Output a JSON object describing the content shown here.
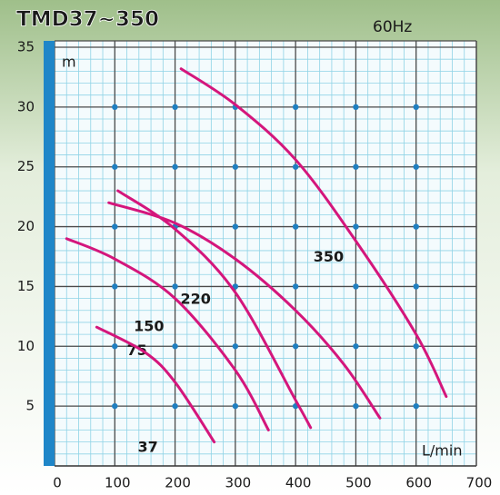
{
  "chart_data": {
    "type": "line",
    "title": "TMD37~350",
    "subtitle": "60Hz",
    "y_axis_label": "m",
    "x_axis_label": "L/min",
    "xlim": [
      0,
      700
    ],
    "ylim": [
      0,
      35
    ],
    "xticks": [
      0,
      100,
      200,
      300,
      400,
      500,
      600,
      700
    ],
    "yticks": [
      5,
      10,
      15,
      20,
      25,
      30,
      35
    ],
    "grid": true,
    "series": [
      {
        "name": "350",
        "color": "#d4167c",
        "x": [
          210,
          300,
          400,
          500,
          600,
          650
        ],
        "values": [
          33.2,
          30.2,
          25.6,
          18.8,
          11,
          5.8
        ]
      },
      {
        "name": "220",
        "color": "#d4167c",
        "x": [
          90,
          200,
          300,
          400,
          480,
          540
        ],
        "values": [
          22,
          20.3,
          17.3,
          13,
          8.5,
          4
        ]
      },
      {
        "name": "150",
        "color": "#d4167c",
        "x": [
          105,
          200,
          300,
          400,
          425
        ],
        "values": [
          23,
          19.8,
          14.5,
          5.5,
          3.2
        ]
      },
      {
        "name": "75",
        "color": "#d4167c",
        "x": [
          20,
          100,
          200,
          300,
          355
        ],
        "values": [
          19,
          17.3,
          14,
          8,
          3
        ]
      },
      {
        "name": "37",
        "color": "#d4167c",
        "x": [
          70,
          150,
          200,
          265
        ],
        "values": [
          11.6,
          9.5,
          7,
          2
        ]
      }
    ]
  }
}
